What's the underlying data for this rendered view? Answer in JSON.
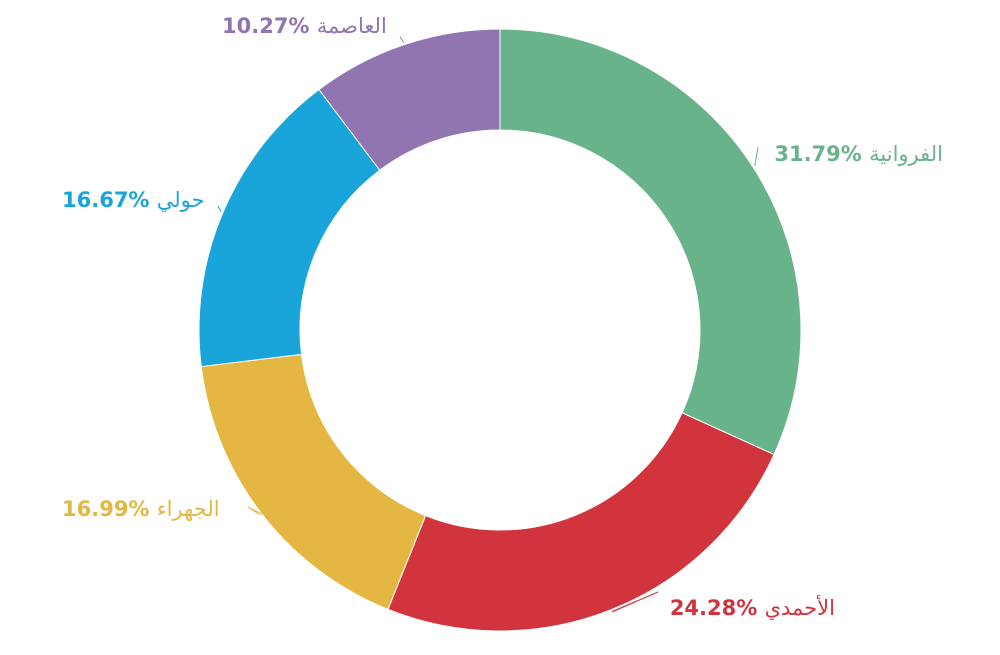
{
  "chart_data": {
    "type": "pie",
    "donut": true,
    "title": "",
    "slices": [
      {
        "label": "الفروانية",
        "value": 31.79,
        "display": "31.79%",
        "color": "#69b38b"
      },
      {
        "label": "الأحمدي",
        "value": 24.28,
        "display": "24.28%",
        "color": "#d1343d"
      },
      {
        "label": "الجهراء",
        "value": 16.99,
        "display": "16.99%",
        "color": "#e4b743"
      },
      {
        "label": "حولي",
        "value": 16.67,
        "display": "16.67%",
        "color": "#19a5d9"
      },
      {
        "label": "العاصمة",
        "value": 10.27,
        "display": "10.27%",
        "color": "#9175b0"
      }
    ]
  }
}
